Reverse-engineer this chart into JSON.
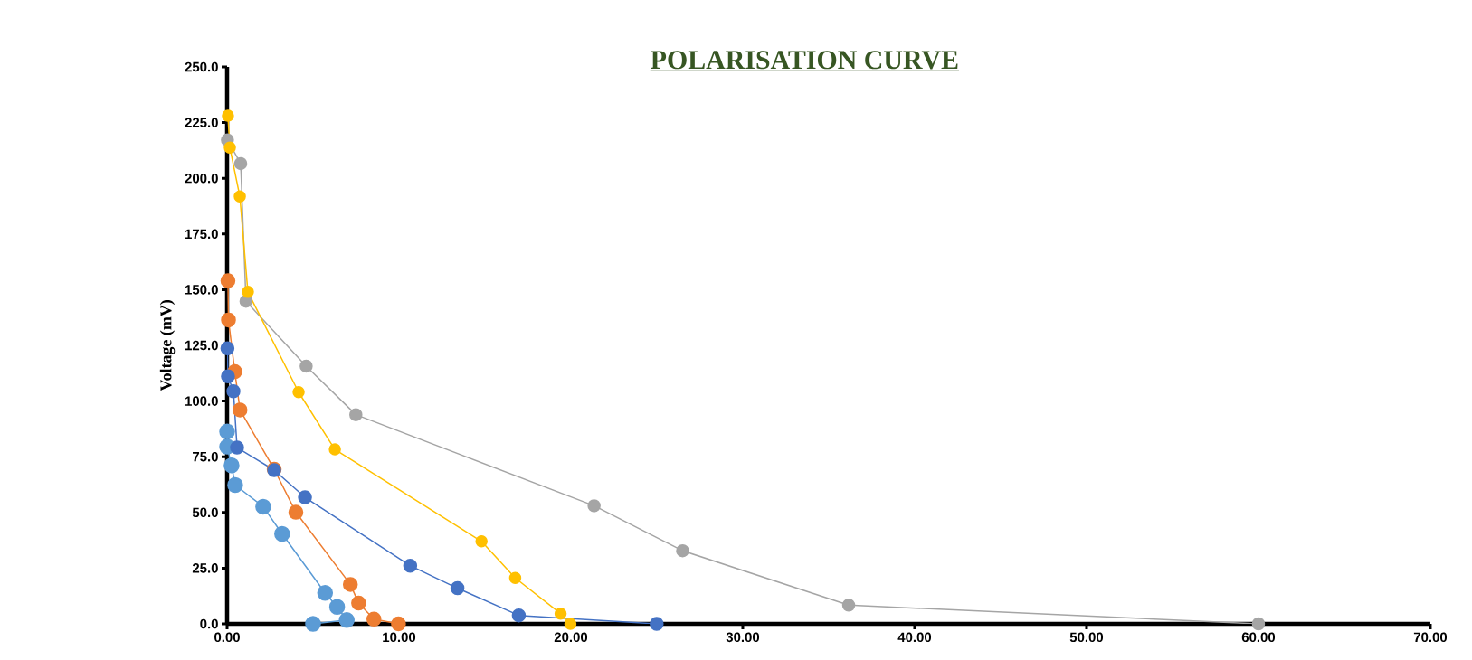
{
  "chart_data": {
    "type": "line",
    "title": "POLARISATION CURVE",
    "ylabel": "Voltage (mV)",
    "xlim": [
      0,
      70
    ],
    "xticks": [
      {
        "value": 0,
        "label": "0.00"
      },
      {
        "value": 10,
        "label": "10.00"
      },
      {
        "value": 20,
        "label": "20.00"
      },
      {
        "value": 30,
        "label": "30.00"
      },
      {
        "value": 40,
        "label": "40.00"
      },
      {
        "value": 50,
        "label": "50.00"
      },
      {
        "value": 60,
        "label": "60.00"
      },
      {
        "value": 70,
        "label": "70.00"
      }
    ],
    "ylim": [
      0,
      250
    ],
    "yticks": [
      {
        "value": 0,
        "label": "0.0"
      },
      {
        "value": 25,
        "label": "25.0"
      },
      {
        "value": 50,
        "label": "50.0"
      },
      {
        "value": 75,
        "label": "75.0"
      },
      {
        "value": 100,
        "label": "100.0"
      },
      {
        "value": 125,
        "label": "125.0"
      },
      {
        "value": 150,
        "label": "150.0"
      },
      {
        "value": 175,
        "label": "175.0"
      },
      {
        "value": 200,
        "label": "200.0"
      },
      {
        "value": 225,
        "label": "225.0"
      },
      {
        "value": 250,
        "label": "250.0"
      }
    ],
    "grid": false,
    "marker": "circle",
    "line_style": "solid",
    "series": [
      {
        "color": "#5b9bd5",
        "x": [
          0,
          0,
          0.26,
          0.47,
          2.1,
          3.2,
          5.7,
          6.4,
          6.96,
          5.0
        ],
        "values": [
          86.3,
          79.5,
          71.1,
          62.3,
          52.6,
          40.4,
          13.9,
          7.6,
          1.7,
          0
        ]
      },
      {
        "color": "#ed7d31",
        "x": [
          0.05,
          0.08,
          0.45,
          0.75,
          2.74,
          4.0,
          7.17,
          7.65,
          8.54,
          9.97
        ],
        "values": [
          154,
          136.4,
          113.2,
          96,
          69.4,
          50.1,
          17.7,
          9.3,
          2.1,
          0
        ]
      },
      {
        "color": "#4472c4",
        "x": [
          0.02,
          0.05,
          0.37,
          0.58,
          2.74,
          4.53,
          10.65,
          13.4,
          16.97,
          24.99
        ],
        "values": [
          123.7,
          111.1,
          104.4,
          79.1,
          69,
          56.8,
          26.1,
          16,
          3.8,
          0
        ]
      },
      {
        "color": "#a5a5a5",
        "x": [
          0.02,
          0.79,
          1.1,
          4.6,
          7.49,
          21.35,
          26.5,
          36.16,
          60
        ],
        "values": [
          217.2,
          206.6,
          144.8,
          115.7,
          93.9,
          53,
          32.8,
          8.4,
          0
        ]
      },
      {
        "color": "#ffc000",
        "x": [
          0.05,
          0.16,
          0.74,
          1.21,
          4.16,
          6.27,
          14.8,
          16.76,
          19.4,
          19.97
        ],
        "values": [
          228.1,
          213.8,
          191.9,
          149,
          104,
          78.3,
          37,
          20.6,
          4.6,
          0
        ]
      }
    ]
  }
}
